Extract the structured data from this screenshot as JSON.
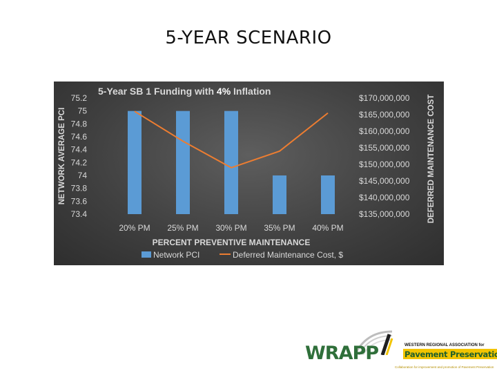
{
  "slide_title": "5-YEAR SCENARIO",
  "chart_data": {
    "type": "bar+line",
    "title": "5-Year SB 1 Funding with 4% Inflation",
    "title_parts": [
      "5-Year SB 1 Funding with ",
      "4%",
      " Inflation"
    ],
    "categories": [
      "20% PM",
      "25% PM",
      "30% PM",
      "35% PM",
      "40% PM"
    ],
    "xlabel": "PERCENT PREVENTIVE MAINTENANCE",
    "ylabel_left": "NETWORK AVERAGE PCI",
    "ylabel_right": "DEFERRED MAINTENANCE COST",
    "y_left": {
      "min": 73.4,
      "max": 75.2,
      "ticks": [
        "75.2",
        "75",
        "74.8",
        "74.6",
        "74.4",
        "74.2",
        "74",
        "73.8",
        "73.6",
        "73.4"
      ]
    },
    "y_right": {
      "min": 135000000,
      "max": 170000000,
      "ticks": [
        "$170,000,000",
        "$165,000,000",
        "$160,000,000",
        "$155,000,000",
        "$150,000,000",
        "$145,000,000",
        "$140,000,000",
        "$135,000,000"
      ]
    },
    "series": [
      {
        "name": "Network PCI",
        "type": "bar",
        "axis": "left",
        "color": "#5b9bd5",
        "values": [
          75,
          75,
          75,
          74,
          74
        ]
      },
      {
        "name": "Deferred Maintenance Cost, $",
        "type": "line",
        "axis": "right",
        "color": "#ed7d31",
        "values": [
          166000000,
          157000000,
          149000000,
          154000000,
          165500000
        ]
      }
    ],
    "legend": "bottom",
    "grid": false
  },
  "logo": {
    "wordmark": "WRAPP",
    "small_title": "WESTERN REGIONAL ASSOCIATION for",
    "banner": "Pavement Preservation",
    "tagline": "Collaboration for improvement and promotion of Pavement Preservation"
  },
  "colors": {
    "panel": "#3f3f3f",
    "bar": "#5b9bd5",
    "line": "#ed7d31",
    "text": "#d9d9d9",
    "accent": "#f2c400",
    "brand_green": "#2f6f3a"
  }
}
